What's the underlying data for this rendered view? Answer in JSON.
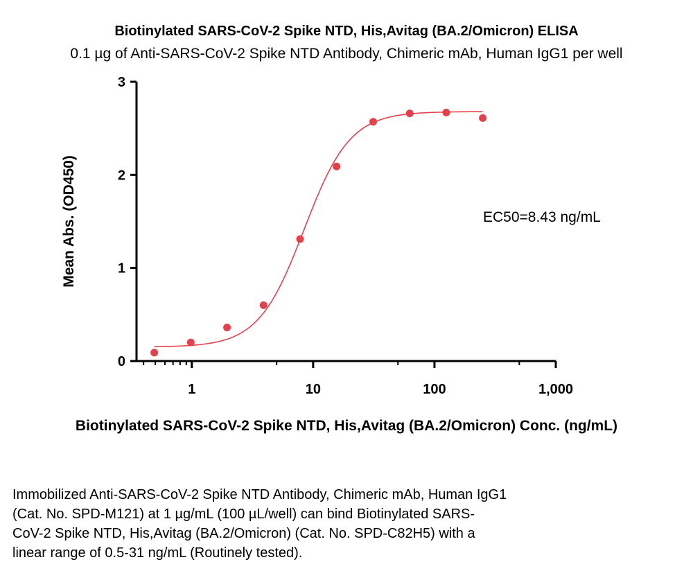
{
  "chart_data": {
    "type": "scatter",
    "title": "Biotinylated SARS-CoV-2 Spike NTD, His,Avitag (BA.2/Omicron) ELISA",
    "subtitle": "0.1 µg of Anti-SARS-CoV-2 Spike NTD Antibody, Chimeric mAb, Human IgG1 per well",
    "xlabel": "Biotinylated SARS-CoV-2 Spike NTD, His,Avitag (BA.2/Omicron) Conc. (ng/mL)",
    "ylabel": "Mean Abs. (OD450)",
    "x_scale": "log",
    "xlim": [
      0.35,
      1000
    ],
    "ylim": [
      0,
      3
    ],
    "x_ticks": [
      1,
      10,
      100,
      1000
    ],
    "x_tick_labels": [
      "1",
      "10",
      "100",
      "1,000"
    ],
    "y_ticks": [
      0,
      1,
      2,
      3
    ],
    "y_tick_labels": [
      "0",
      "1",
      "2",
      "3"
    ],
    "grid": false,
    "annotation": "EC50=8.43 ng/mL",
    "colors": {
      "points": "#e8404a",
      "curve": "#e8404a",
      "axis": "#000000"
    },
    "series": [
      {
        "x": [
          0.49,
          0.98,
          1.95,
          3.9,
          7.8,
          15.6,
          31.25,
          62.5,
          125,
          250
        ],
        "y": [
          0.09,
          0.2,
          0.36,
          0.6,
          1.31,
          2.09,
          2.57,
          2.66,
          2.67,
          2.61
        ]
      }
    ],
    "fit": {
      "model": "4PL",
      "bottom": 0.15,
      "top": 2.68,
      "ec50": 8.43,
      "hill": 2.3,
      "x_range": [
        0.49,
        250
      ]
    }
  },
  "caption": [
    "Immobilized Anti-SARS-CoV-2 Spike NTD Antibody, Chimeric mAb, Human IgG1",
    "(Cat. No. SPD-M121) at 1 µg/mL (100 µL/well) can bind Biotinylated SARS-",
    "CoV-2 Spike NTD, His,Avitag (BA.2/Omicron) (Cat. No. SPD-C82H5) with a",
    "linear range of 0.5-31 ng/mL (Routinely tested)."
  ]
}
